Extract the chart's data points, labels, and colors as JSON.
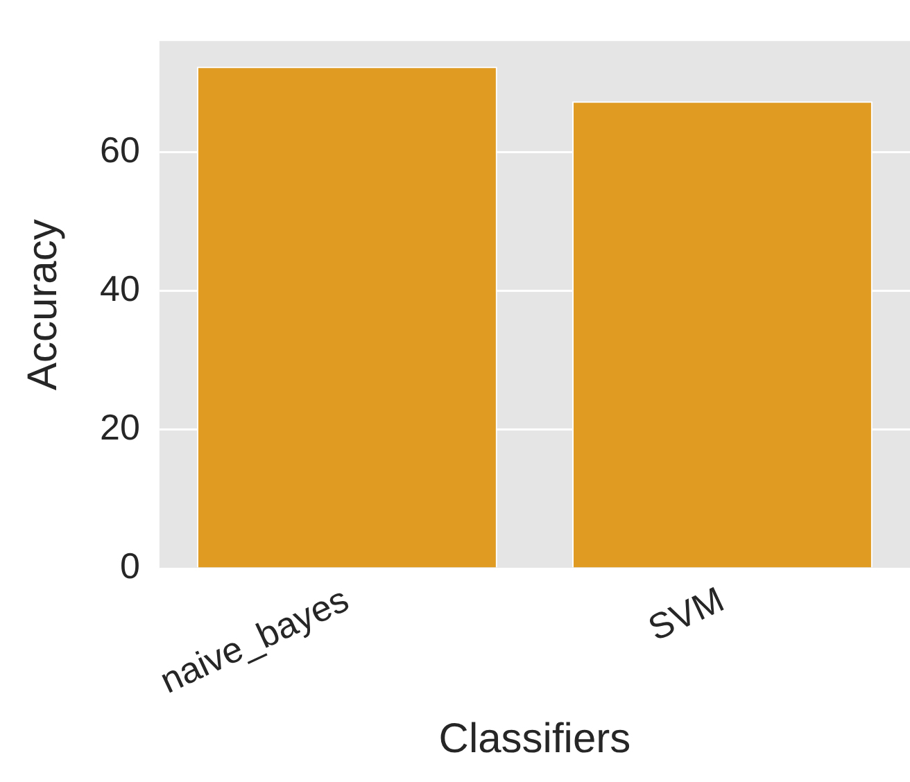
{
  "chart_data": {
    "type": "bar",
    "xlabel": "Classifiers",
    "ylabel": "Accuracy",
    "categories": [
      "naive_bayes",
      "SVM"
    ],
    "values": [
      72.3,
      67.3
    ],
    "color": "#df9b22",
    "ylim": [
      0,
      76
    ],
    "yticks": [
      0,
      20,
      40,
      60
    ],
    "grid": "y",
    "legend": false
  }
}
